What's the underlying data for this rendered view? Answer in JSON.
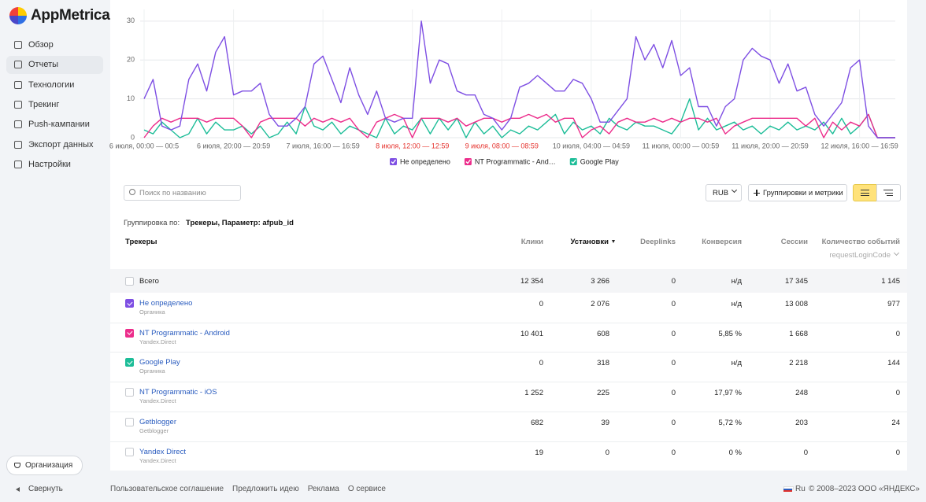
{
  "sidebar": {
    "logo": "AppMetrica",
    "menu": [
      "Обзор",
      "Отчеты",
      "Технологии",
      "Трекинг",
      "Push-кампании",
      "Экспорт данных",
      "Настройки"
    ],
    "organization": "Организация",
    "collapse": "Свернуть"
  },
  "chart_data": {
    "type": "line",
    "x": [
      0,
      2,
      4,
      6,
      8,
      10,
      12,
      14,
      16,
      18,
      20,
      22,
      24,
      26,
      28,
      30,
      32,
      34,
      36,
      38,
      40,
      42,
      44,
      46,
      48,
      50,
      52,
      54,
      56,
      58,
      60,
      62,
      64,
      66,
      68,
      70,
      72,
      74,
      76,
      78,
      80,
      82,
      84,
      86,
      88,
      90,
      92,
      94,
      96,
      98,
      100,
      102,
      104,
      106,
      108,
      110,
      112,
      114,
      116,
      118,
      120,
      122,
      124,
      126,
      128,
      130,
      132,
      134,
      136,
      138,
      140,
      142,
      144,
      146,
      148,
      150,
      152,
      154,
      156,
      158,
      160,
      162,
      164,
      166,
      168
    ],
    "xlim": [
      0,
      168
    ],
    "xticks": [
      {
        "value": 0,
        "label": "6 июля, 00:00 — 00:5"
      },
      {
        "value": 20,
        "label": "6 июля, 20:00 — 20:59"
      },
      {
        "value": 40,
        "label": "7 июля, 16:00 — 16:59"
      },
      {
        "value": 60,
        "label": "8 июля, 12:00 — 12:59"
      },
      {
        "value": 80,
        "label": "9 июля, 08:00 — 08:59"
      },
      {
        "value": 100,
        "label": "10 июля, 04:00 — 04:59"
      },
      {
        "value": 120,
        "label": "11 июля, 00:00 — 00:59"
      },
      {
        "value": 140,
        "label": "11 июля, 20:00 — 20:59"
      },
      {
        "value": 160,
        "label": "12 июля, 16:00 — 16:59"
      }
    ],
    "xtick_colors": [
      "#666666",
      "#666666",
      "#666666",
      "#e5322d",
      "#e5322d",
      "#666666",
      "#666666",
      "#666666",
      "#666666"
    ],
    "ylim": [
      0,
      33
    ],
    "yticks": [
      0,
      10,
      20,
      30
    ],
    "grid": true,
    "series": [
      {
        "name": "Не определено",
        "color": "#7e4fe3",
        "values": [
          10,
          15,
          3,
          2,
          3,
          15,
          19,
          12,
          22,
          26,
          11,
          12,
          12,
          14,
          6,
          3,
          3,
          5,
          8,
          19,
          21,
          15,
          9,
          18,
          11,
          6,
          12,
          5,
          4,
          5,
          5,
          30,
          14,
          20,
          19,
          12,
          11,
          11,
          6,
          5,
          2,
          5,
          13,
          14,
          16,
          14,
          12,
          12,
          15,
          14,
          10,
          4,
          4,
          7,
          10,
          26,
          20,
          24,
          18,
          25,
          16,
          18,
          8,
          8,
          3,
          8,
          10,
          20,
          23,
          21,
          20,
          14,
          19,
          12,
          13,
          6,
          3,
          6,
          9,
          18,
          20,
          3,
          0,
          0,
          0
        ]
      },
      {
        "name": "NT Programmatic - And…",
        "color": "#ec2d8b",
        "values": [
          0,
          3,
          5,
          4,
          5,
          5,
          5,
          4,
          5,
          5,
          5,
          3,
          0,
          4,
          5,
          5,
          5,
          5,
          3,
          5,
          4,
          5,
          4,
          5,
          2,
          0,
          4,
          5,
          6,
          5,
          0,
          5,
          5,
          5,
          4,
          5,
          3,
          4,
          5,
          5,
          4,
          5,
          5,
          6,
          5,
          6,
          4,
          5,
          5,
          0,
          2,
          3,
          1,
          4,
          5,
          4,
          4,
          5,
          4,
          5,
          4,
          5,
          5,
          4,
          5,
          1,
          3,
          4,
          5,
          5,
          5,
          5,
          5,
          5,
          3,
          5,
          0,
          4,
          2,
          4,
          3,
          6,
          0,
          0,
          0
        ]
      },
      {
        "name": "Google Play",
        "color": "#1dbd98",
        "values": [
          2,
          1,
          4,
          2,
          0,
          1,
          5,
          1,
          4,
          2,
          2,
          3,
          1,
          3,
          0,
          1,
          4,
          1,
          8,
          3,
          2,
          4,
          1,
          3,
          2,
          1,
          0,
          5,
          1,
          3,
          2,
          5,
          1,
          5,
          2,
          5,
          0,
          4,
          1,
          3,
          0,
          2,
          1,
          3,
          2,
          4,
          6,
          1,
          4,
          2,
          3,
          1,
          5,
          3,
          2,
          4,
          3,
          3,
          2,
          1,
          4,
          10,
          2,
          5,
          2,
          3,
          4,
          2,
          3,
          1,
          3,
          2,
          4,
          2,
          3,
          2,
          4,
          1,
          5,
          1,
          3,
          6,
          0,
          0,
          0
        ]
      }
    ]
  },
  "toolbar": {
    "search_placeholder": "Поиск по названию",
    "currency": "RUB",
    "metrics_button": "Группировки и метрики"
  },
  "grouping": {
    "label": "Группировка по:",
    "value": "Трекеры, Параметр: afpub_id"
  },
  "table": {
    "columns": [
      "Трекеры",
      "Клики",
      "Установки",
      "Deeplinks",
      "Конверсия",
      "Сессии",
      "Количество событий"
    ],
    "event_param": "requestLoginCode",
    "total": {
      "label": "Всего",
      "cells": [
        "12 354",
        "3 266",
        "0",
        "н/д",
        "17 345",
        "1 145"
      ]
    },
    "rows": [
      {
        "name": "Не определено",
        "source": "Органика",
        "checked": true,
        "check_color": "#7e4fe3",
        "cells": [
          "0",
          "2 076",
          "0",
          "н/д",
          "13 008",
          "977"
        ]
      },
      {
        "name": "NT Programmatic - Android",
        "source": "Yandex.Direct",
        "checked": true,
        "check_color": "#ec2d8b",
        "cells": [
          "10 401",
          "608",
          "0",
          "5,85 %",
          "1 668",
          "0"
        ]
      },
      {
        "name": "Google Play",
        "source": "Органика",
        "checked": true,
        "check_color": "#1dbd98",
        "cells": [
          "0",
          "318",
          "0",
          "н/д",
          "2 218",
          "144"
        ]
      },
      {
        "name": "NT Programmatic - iOS",
        "source": "Yandex.Direct",
        "checked": false,
        "cells": [
          "1 252",
          "225",
          "0",
          "17,97 %",
          "248",
          "0"
        ]
      },
      {
        "name": "Getblogger",
        "source": "Getblogger",
        "checked": false,
        "cells": [
          "682",
          "39",
          "0",
          "5,72 %",
          "203",
          "24"
        ]
      },
      {
        "name": "Yandex Direct",
        "source": "Yandex.Direct",
        "checked": false,
        "cells": [
          "19",
          "0",
          "0",
          "0 %",
          "0",
          "0"
        ]
      }
    ]
  },
  "footer": {
    "links": [
      "Пользовательское соглашение",
      "Предложить идею",
      "Реклама",
      "О сервисе"
    ],
    "lang": "Ru",
    "copyright": "© 2008–2023 ООО «ЯНДЕКС»"
  }
}
